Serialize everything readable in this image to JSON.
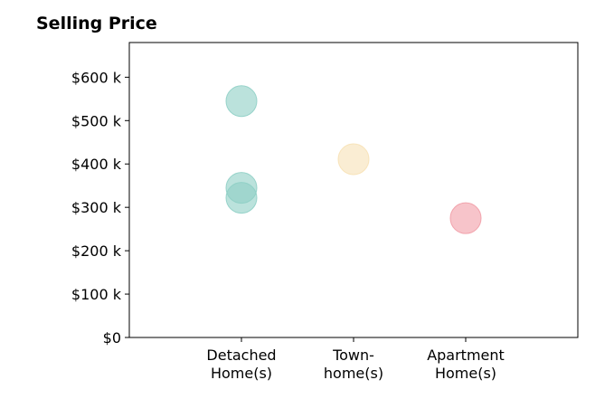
{
  "chart_data": {
    "type": "scatter",
    "title": "Selling Price",
    "xlabel": "",
    "ylabel": "",
    "categories": [
      [
        "Detached",
        "Home(s)"
      ],
      [
        "Town-",
        "home(s)"
      ],
      [
        "Apartment",
        "Home(s)"
      ]
    ],
    "ylim": [
      0,
      680000
    ],
    "yticks": [
      0,
      100000,
      200000,
      300000,
      400000,
      500000,
      600000
    ],
    "ytick_labels": [
      "$0",
      "$100 k",
      "$200 k",
      "$300 k",
      "$400 k",
      "$500 k",
      "$600 k"
    ],
    "points": [
      {
        "category": 0,
        "y": 545000,
        "color": "#8ECFC5"
      },
      {
        "category": 0,
        "y": 345000,
        "color": "#8ECFC5"
      },
      {
        "category": 0,
        "y": 322000,
        "color": "#8ECFC5"
      },
      {
        "category": 1,
        "y": 411000,
        "color": "#F7E1B5"
      },
      {
        "category": 2,
        "y": 275000,
        "color": "#F19CA6"
      }
    ],
    "grid": false,
    "legend": "none"
  }
}
